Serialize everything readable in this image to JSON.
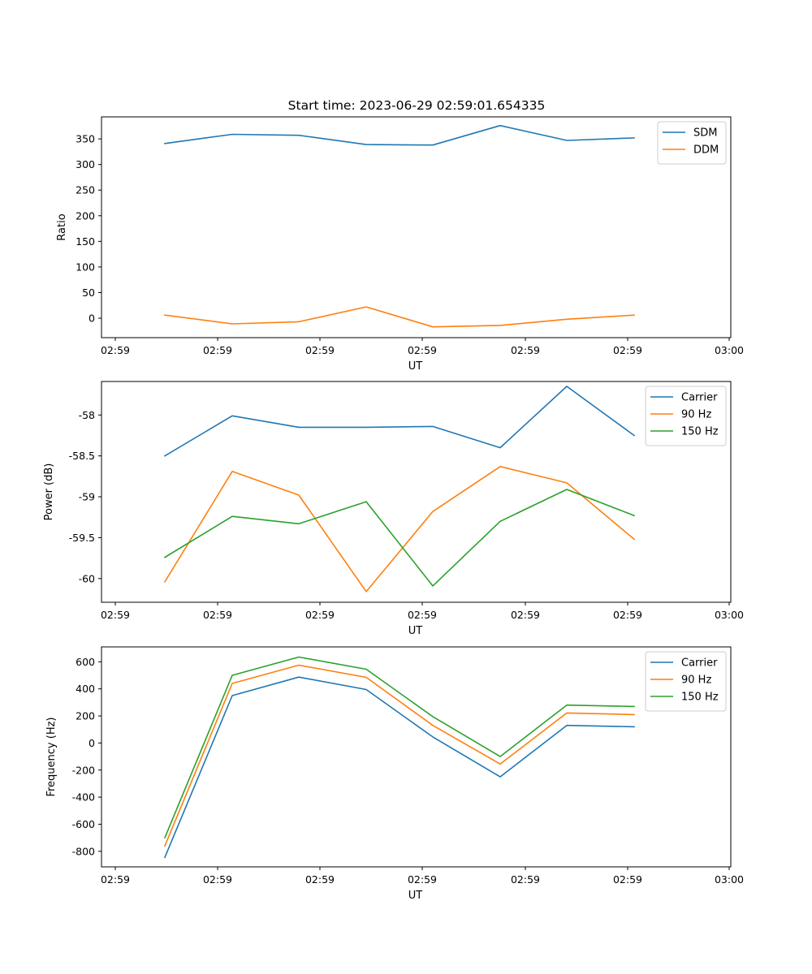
{
  "title": "Start time: 2023-06-29 02:59:01.654335",
  "chart_data": [
    {
      "type": "line",
      "xlabel": "UT",
      "ylabel": "Ratio",
      "x_tick_labels": [
        "02:59",
        "02:59",
        "02:59",
        "02:59",
        "02:59",
        "02:59",
        "03:00"
      ],
      "y_ticks": [
        0,
        50,
        100,
        150,
        200,
        250,
        300,
        350
      ],
      "ylim": [
        -38,
        393
      ],
      "legend": "top-right",
      "series": [
        {
          "name": "SDM",
          "color": "#1f77b4",
          "values": [
            341,
            359,
            357,
            339,
            338,
            376,
            347,
            352
          ]
        },
        {
          "name": "DDM",
          "color": "#ff7f0e",
          "values": [
            6,
            -11,
            -7,
            22,
            -17,
            -14,
            -2,
            6
          ]
        }
      ]
    },
    {
      "type": "line",
      "xlabel": "UT",
      "ylabel": "Power (dB)",
      "x_tick_labels": [
        "02:59",
        "02:59",
        "02:59",
        "02:59",
        "02:59",
        "02:59",
        "03:00"
      ],
      "y_ticks": [
        -60.0,
        -59.5,
        -59.0,
        -58.5,
        -58.0
      ],
      "ylim": [
        -60.29,
        -57.59
      ],
      "legend": "top-right",
      "series": [
        {
          "name": "Carrier",
          "color": "#1f77b4",
          "values": [
            -58.5,
            -58.01,
            -58.15,
            -58.15,
            -58.14,
            -58.4,
            -57.65,
            -58.25
          ]
        },
        {
          "name": "90 Hz",
          "color": "#ff7f0e",
          "values": [
            -60.04,
            -58.69,
            -58.98,
            -60.16,
            -59.18,
            -58.63,
            -58.83,
            -59.52
          ]
        },
        {
          "name": "150 Hz",
          "color": "#2ca02c",
          "values": [
            -59.74,
            -59.24,
            -59.33,
            -59.06,
            -60.09,
            -59.3,
            -58.91,
            -59.23
          ]
        }
      ]
    },
    {
      "type": "line",
      "xlabel": "UT",
      "ylabel": "Frequency (Hz)",
      "x_tick_labels": [
        "02:59",
        "02:59",
        "02:59",
        "02:59",
        "02:59",
        "02:59",
        "03:00"
      ],
      "y_ticks": [
        -800,
        -600,
        -400,
        -200,
        0,
        200,
        400,
        600
      ],
      "ylim": [
        -915,
        710
      ],
      "legend": "top-right",
      "series": [
        {
          "name": "Carrier",
          "color": "#1f77b4",
          "values": [
            -845,
            350,
            487,
            395,
            45,
            -250,
            130,
            120
          ]
        },
        {
          "name": "90 Hz",
          "color": "#ff7f0e",
          "values": [
            -760,
            440,
            575,
            485,
            130,
            -155,
            222,
            210
          ]
        },
        {
          "name": "150 Hz",
          "color": "#2ca02c",
          "values": [
            -700,
            500,
            635,
            545,
            195,
            -100,
            280,
            270
          ]
        }
      ]
    }
  ]
}
